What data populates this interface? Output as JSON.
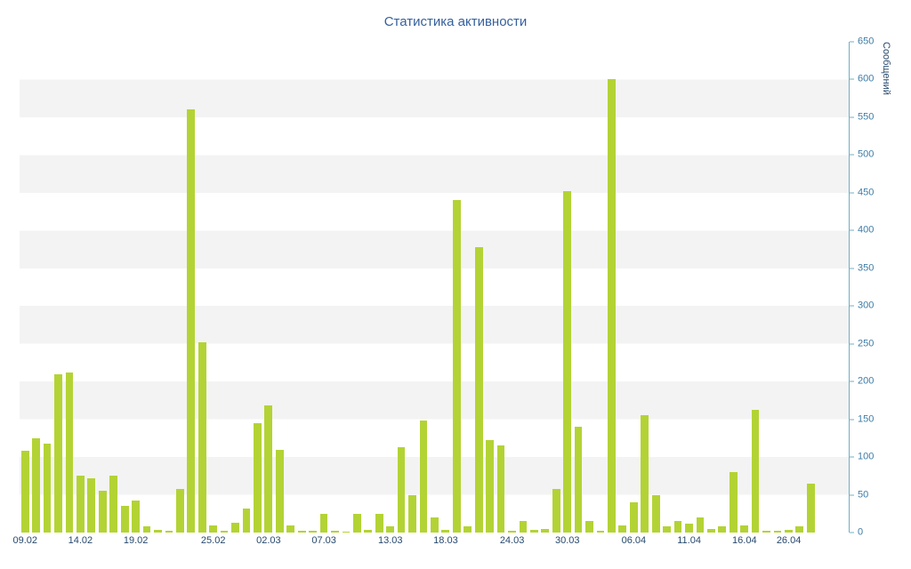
{
  "page": {
    "background": "#ffffff"
  },
  "chart_data": {
    "type": "bar",
    "title": "Статистика активности",
    "ylabel": "Сообщений",
    "xlabel": "",
    "ylim": [
      0,
      650
    ],
    "y_tick_step": 50,
    "grid": "alternating-horizontal-bands",
    "legend_position": "none",
    "values": [
      108,
      125,
      118,
      210,
      212,
      75,
      72,
      55,
      75,
      35,
      42,
      8,
      4,
      2,
      58,
      560,
      252,
      10,
      2,
      13,
      32,
      145,
      168,
      110,
      10,
      2,
      2,
      25,
      2,
      1,
      25,
      3,
      25,
      8,
      113,
      50,
      148,
      20,
      3,
      440,
      8,
      378,
      122,
      115,
      2,
      15,
      3,
      5,
      58,
      452,
      140,
      15,
      2,
      600,
      10,
      40,
      155,
      50,
      8,
      15,
      12,
      20,
      5,
      8,
      80,
      10,
      162,
      2,
      2,
      3,
      8,
      65,
      0,
      0,
      0
    ],
    "x_ticks": [
      {
        "label": "09.02",
        "index": 0
      },
      {
        "label": "14.02",
        "index": 5
      },
      {
        "label": "19.02",
        "index": 10
      },
      {
        "label": "25.02",
        "index": 17
      },
      {
        "label": "02.03",
        "index": 22
      },
      {
        "label": "07.03",
        "index": 27
      },
      {
        "label": "13.03",
        "index": 33
      },
      {
        "label": "18.03",
        "index": 38
      },
      {
        "label": "24.03",
        "index": 44
      },
      {
        "label": "30.03",
        "index": 49
      },
      {
        "label": "06.04",
        "index": 55
      },
      {
        "label": "11.04",
        "index": 60
      },
      {
        "label": "16.04",
        "index": 65
      },
      {
        "label": "26.04",
        "index": 69
      }
    ],
    "colors": {
      "bar": "#b3d335",
      "stripe": "#f3f3f3",
      "axis_line": "#6fb0c2",
      "y_tick_label": "#3e7ca6",
      "x_tick_label": "#27496d",
      "title": "#35609c"
    }
  }
}
